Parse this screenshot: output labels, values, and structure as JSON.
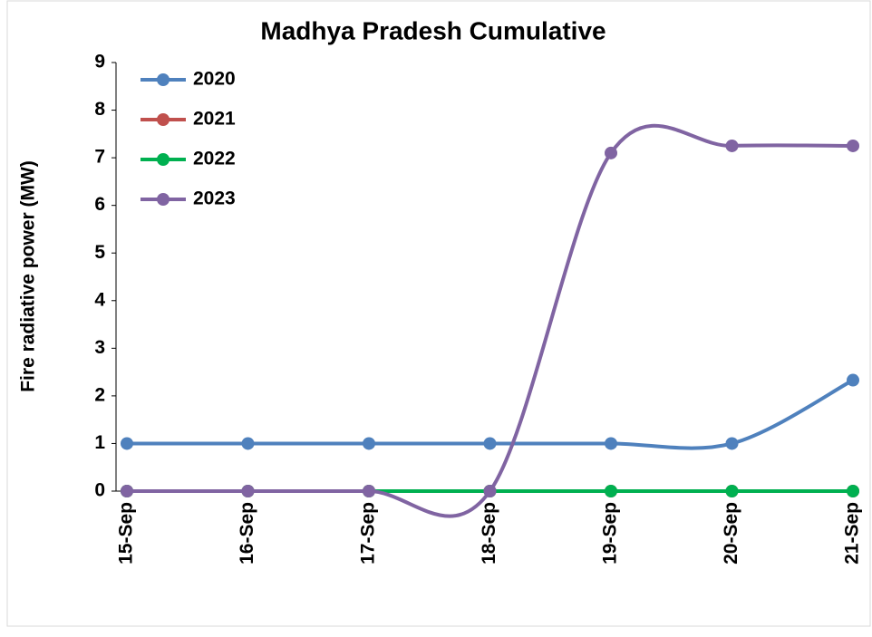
{
  "chart_data": {
    "type": "line",
    "title": "Madhya Pradesh Cumulative",
    "y_label": "Fire radiative power (MW)",
    "categories": [
      "15-Sep",
      "16-Sep",
      "17-Sep",
      "18-Sep",
      "19-Sep",
      "20-Sep",
      "21-Sep"
    ],
    "series": [
      {
        "name": "2020",
        "color": "#4f81bd",
        "values": [
          1,
          1,
          1,
          1,
          1,
          1,
          2.33
        ]
      },
      {
        "name": "2021",
        "color": "#c0504d",
        "values": [
          0,
          0,
          0,
          0,
          0,
          0,
          0
        ]
      },
      {
        "name": "2022",
        "color": "#00b050",
        "values": [
          0,
          0,
          0,
          0,
          0,
          0,
          0
        ]
      },
      {
        "name": "2023",
        "color": "#8064a2",
        "values": [
          0,
          0,
          0,
          0,
          7.1,
          7.25,
          7.25
        ]
      }
    ],
    "ylim": [
      0,
      9
    ],
    "yticks": [
      0,
      1,
      2,
      3,
      4,
      5,
      6,
      7,
      8,
      9
    ],
    "smooth": true,
    "legend": "upper left"
  }
}
